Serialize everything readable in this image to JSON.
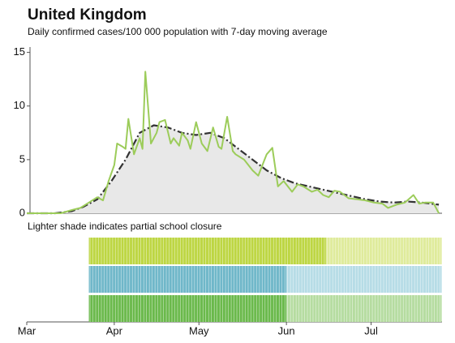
{
  "chart_data": {
    "type": "line",
    "title": "United Kingdom",
    "subtitle": "Daily confirmed cases/100 000 population with 7-day moving average",
    "ylim": [
      0,
      15.5
    ],
    "yticks": [
      0,
      5,
      10,
      15
    ],
    "xlim": [
      0,
      148
    ],
    "xticks": [
      {
        "value": 0,
        "label": "Mar"
      },
      {
        "value": 31,
        "label": "Apr"
      },
      {
        "value": 61,
        "label": "May"
      },
      {
        "value": 92,
        "label": "Jun"
      },
      {
        "value": 122,
        "label": "Jul"
      }
    ],
    "series": [
      {
        "name": "7-day moving average",
        "color": "#333333",
        "dash": true,
        "fill": "#e8e8e8",
        "x": [
          0,
          10,
          16,
          20,
          25,
          30,
          35,
          40,
          45,
          50,
          55,
          60,
          65,
          70,
          75,
          80,
          85,
          90,
          95,
          100,
          105,
          110,
          115,
          120,
          125,
          130,
          135,
          140,
          146
        ],
        "values": [
          0,
          0,
          0.2,
          0.6,
          1.3,
          3,
          5,
          7.5,
          8.2,
          8,
          7.5,
          7.3,
          7.5,
          7,
          6,
          5,
          4,
          3.3,
          2.8,
          2.5,
          2.2,
          1.9,
          1.6,
          1.3,
          1.1,
          1,
          1.1,
          1,
          0.8
        ]
      },
      {
        "name": "Daily confirmed cases",
        "color": "#9ccc5a",
        "dash": false,
        "x": [
          0,
          12,
          16,
          19,
          22,
          25,
          27,
          29,
          31,
          32,
          34,
          35,
          36,
          38,
          40,
          41,
          42,
          44,
          46,
          47,
          49,
          51,
          52,
          54,
          55,
          57,
          58,
          60,
          62,
          64,
          66,
          68,
          69,
          71,
          73,
          74,
          77,
          80,
          82,
          85,
          87,
          89,
          91,
          94,
          96,
          98,
          101,
          103,
          105,
          107,
          109,
          111,
          114,
          117,
          120,
          123,
          126,
          128,
          131,
          134,
          137,
          139,
          141,
          144,
          146
        ],
        "values": [
          0,
          0,
          0.3,
          0.5,
          1,
          1.5,
          1.2,
          3,
          4.5,
          6.5,
          6.2,
          6,
          8.8,
          5.5,
          7,
          6,
          13.2,
          6.5,
          7.5,
          8.5,
          8.7,
          6.5,
          7,
          6.3,
          7.5,
          6.8,
          6,
          8.5,
          6.5,
          5.8,
          8,
          6.2,
          6,
          9,
          5.8,
          5.5,
          5,
          4,
          3.5,
          5.5,
          6.1,
          2.5,
          3,
          2,
          2.7,
          2.5,
          2,
          2.2,
          1.7,
          1.5,
          2.1,
          2,
          1.4,
          1.3,
          1.2,
          1,
          0.9,
          0.5,
          0.8,
          1,
          1.7,
          0.9,
          1,
          1,
          0
        ]
      }
    ],
    "school_note": "Lighter shade indicates partial school closure",
    "school_bands": [
      {
        "color": "#bdd642",
        "partial_color": "#dfeb9b",
        "periods": [
          {
            "start": 22,
            "end": 106,
            "partial": false
          },
          {
            "start": 106,
            "end": 147,
            "partial": true
          }
        ]
      },
      {
        "color": "#6fb7c9",
        "partial_color": "#b6dce6",
        "periods": [
          {
            "start": 22,
            "end": 92,
            "partial": false
          },
          {
            "start": 92,
            "end": 147,
            "partial": true
          }
        ]
      },
      {
        "color": "#6ab94b",
        "partial_color": "#b5dca0",
        "periods": [
          {
            "start": 22,
            "end": 92,
            "partial": false
          },
          {
            "start": 92,
            "end": 147,
            "partial": true
          }
        ]
      }
    ]
  }
}
